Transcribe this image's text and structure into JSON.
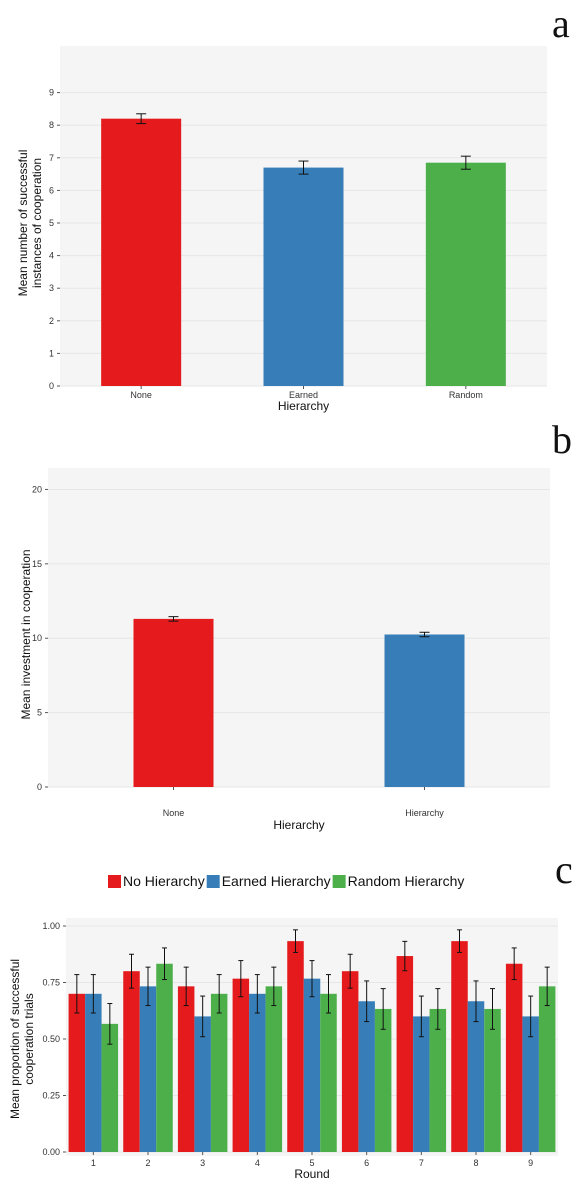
{
  "chart_data": [
    {
      "panel_label": "a",
      "type": "bar",
      "categories": [
        "None",
        "Earned",
        "Random"
      ],
      "values": [
        8.2,
        6.7,
        6.85
      ],
      "errors": [
        0.15,
        0.2,
        0.2
      ],
      "colors": [
        "#e41a1c",
        "#377eb8",
        "#4daf4a"
      ],
      "xlabel": "Hierarchy",
      "ylabel": "Mean number of successful\ninstances of cooperation",
      "ylim": [
        0,
        10
      ],
      "yticks": [
        0,
        1,
        2,
        3,
        4,
        5,
        6,
        7,
        8,
        9
      ],
      "ytick_labels": [
        "0",
        "1",
        "2",
        "3",
        "4",
        "5",
        "6",
        "7",
        "8",
        "9"
      ],
      "grid": true
    },
    {
      "panel_label": "b",
      "type": "bar",
      "categories": [
        "None",
        "Hierarchy"
      ],
      "values": [
        11.3,
        10.25
      ],
      "errors": [
        0.15,
        0.15
      ],
      "colors": [
        "#e41a1c",
        "#377eb8"
      ],
      "xlabel": "Hierarchy",
      "ylabel": "Mean investment in cooperation",
      "ylim": [
        0,
        20.5
      ],
      "yticks": [
        0,
        5,
        10,
        15,
        20
      ],
      "ytick_labels": [
        "0",
        "5",
        "10",
        "15",
        "20"
      ],
      "grid": true
    },
    {
      "panel_label": "c",
      "type": "bar",
      "categories": [
        "1",
        "2",
        "3",
        "4",
        "5",
        "6",
        "7",
        "8",
        "9"
      ],
      "series": [
        {
          "name": "No Hierarchy",
          "color": "#e41a1c",
          "values": [
            0.7,
            0.8,
            0.733,
            0.767,
            0.933,
            0.8,
            0.867,
            0.933,
            0.833
          ],
          "errors": [
            0.085,
            0.075,
            0.085,
            0.08,
            0.05,
            0.075,
            0.065,
            0.05,
            0.07
          ]
        },
        {
          "name": "Earned Hierarchy",
          "color": "#377eb8",
          "values": [
            0.7,
            0.733,
            0.6,
            0.7,
            0.767,
            0.667,
            0.6,
            0.667,
            0.6
          ],
          "errors": [
            0.085,
            0.085,
            0.09,
            0.085,
            0.08,
            0.09,
            0.09,
            0.09,
            0.09
          ]
        },
        {
          "name": "Random Hierarchy",
          "color": "#4daf4a",
          "values": [
            0.567,
            0.833,
            0.7,
            0.733,
            0.7,
            0.633,
            0.633,
            0.633,
            0.733
          ],
          "errors": [
            0.09,
            0.07,
            0.085,
            0.085,
            0.085,
            0.09,
            0.09,
            0.09,
            0.085
          ]
        }
      ],
      "xlabel": "Round",
      "ylabel": "Mean proportion of successful\ncooperation trials",
      "ylim": [
        0,
        1.0
      ],
      "yticks": [
        0,
        0.25,
        0.5,
        0.75,
        1.0
      ],
      "ytick_labels": [
        "0.00",
        "0.25",
        "0.50",
        "0.75",
        "1.00"
      ],
      "legend_position": "top",
      "grid": true
    }
  ]
}
